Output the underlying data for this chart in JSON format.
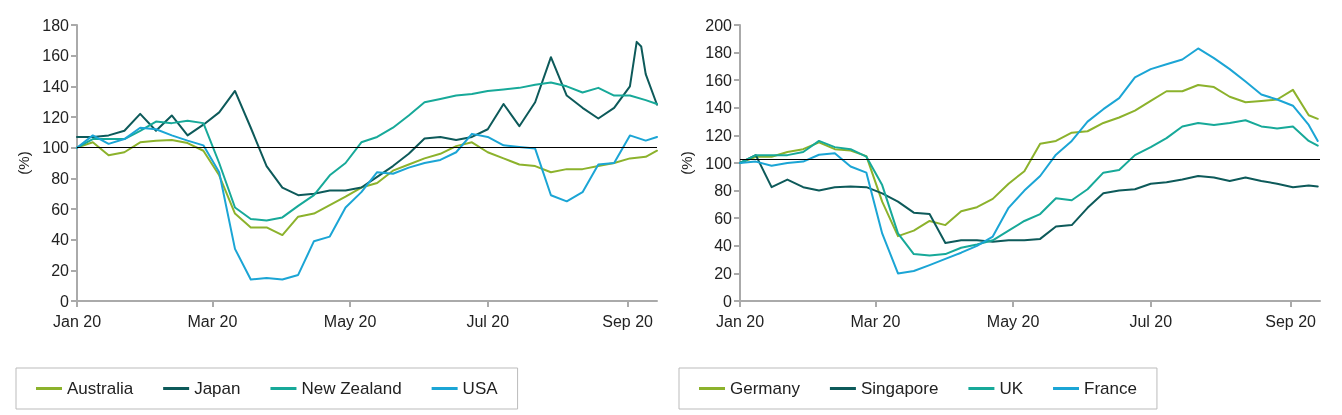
{
  "chart_data": [
    {
      "type": "line",
      "ylabel": "(%)",
      "xlim": [
        "2020-01-01",
        "2020-09-14"
      ],
      "ylim": [
        0,
        180
      ],
      "yticks": [
        0,
        20,
        40,
        60,
        80,
        100,
        120,
        140,
        160,
        180
      ],
      "xticks": [
        {
          "value": "2020-01-01",
          "label": "Jan 20"
        },
        {
          "value": "2020-03-01",
          "label": "Mar 20"
        },
        {
          "value": "2020-05-01",
          "label": "May 20"
        },
        {
          "value": "2020-07-01",
          "label": "Jul 20"
        },
        {
          "value": "2020-09-01",
          "label": "Sep 20"
        }
      ],
      "x": [
        "2020-01-01",
        "2020-01-08",
        "2020-01-15",
        "2020-01-22",
        "2020-01-29",
        "2020-02-05",
        "2020-02-12",
        "2020-02-19",
        "2020-02-26",
        "2020-03-04",
        "2020-03-11",
        "2020-03-18",
        "2020-03-25",
        "2020-04-01",
        "2020-04-08",
        "2020-04-15",
        "2020-04-22",
        "2020-04-29",
        "2020-05-06",
        "2020-05-13",
        "2020-05-20",
        "2020-05-27",
        "2020-06-03",
        "2020-06-10",
        "2020-06-17",
        "2020-06-24",
        "2020-07-01",
        "2020-07-08",
        "2020-07-15",
        "2020-07-22",
        "2020-07-29",
        "2020-08-05",
        "2020-08-12",
        "2020-08-19",
        "2020-08-26",
        "2020-09-02",
        "2020-09-09",
        "2020-09-14"
      ],
      "grid": false,
      "legend": "bottom",
      "marker": "none",
      "line_style": "solid",
      "ref_lines": [
        {
          "axis": "y",
          "value": 100,
          "color": "#000000"
        }
      ],
      "series": [
        {
          "name": "Australia",
          "color": "#8cb22c",
          "values": [
            100,
            103.5,
            95,
            97,
            103.5,
            104.5,
            105,
            103,
            98,
            82,
            57,
            48,
            48,
            43,
            55,
            57,
            62.5,
            68,
            74,
            77,
            85,
            89,
            93,
            96,
            101,
            103.5,
            97,
            93,
            89,
            88,
            84,
            86,
            86,
            88,
            90,
            93,
            94,
            98
          ]
        },
        {
          "name": "Japan",
          "color": "#0d5a5a",
          "x": [
            "2020-01-01",
            "2020-01-08",
            "2020-01-15",
            "2020-01-22",
            "2020-01-29",
            "2020-02-05",
            "2020-02-12",
            "2020-02-19",
            "2020-02-26",
            "2020-03-04",
            "2020-03-11",
            "2020-03-18",
            "2020-03-25",
            "2020-04-01",
            "2020-04-08",
            "2020-04-15",
            "2020-04-22",
            "2020-04-29",
            "2020-05-06",
            "2020-05-13",
            "2020-05-20",
            "2020-05-27",
            "2020-06-03",
            "2020-06-10",
            "2020-06-17",
            "2020-06-24",
            "2020-07-01",
            "2020-07-08",
            "2020-07-15",
            "2020-07-22",
            "2020-07-29",
            "2020-08-05",
            "2020-08-12",
            "2020-08-19",
            "2020-08-26",
            "2020-09-02",
            "2020-09-05",
            "2020-09-07",
            "2020-09-09",
            "2020-09-14"
          ],
          "values": [
            107,
            107,
            108,
            111,
            122,
            111,
            121,
            108,
            115,
            123,
            137,
            113,
            88,
            74,
            69,
            70,
            72,
            72,
            74,
            81,
            88,
            96,
            106,
            107,
            105,
            107,
            112,
            128.5,
            114,
            129.6,
            159,
            134,
            126,
            119,
            126,
            140,
            169,
            166,
            148,
            128
          ]
        },
        {
          "name": "New Zealand",
          "color": "#17a999",
          "values": [
            100,
            105.6,
            105.6,
            105.6,
            111,
            117,
            116,
            117.5,
            116,
            90,
            61,
            53.5,
            52.5,
            54.5,
            62,
            69,
            82,
            90,
            103.5,
            107,
            113,
            121,
            129.6,
            131.7,
            134,
            135,
            137,
            138,
            139,
            141,
            142.5,
            140,
            136,
            139,
            134,
            134,
            131,
            128.5
          ]
        },
        {
          "name": "USA",
          "color": "#1ba5d5",
          "values": [
            100,
            108,
            102.5,
            105.6,
            113,
            112,
            108,
            104.6,
            101.5,
            84,
            34,
            14,
            15,
            14,
            17,
            39,
            42,
            61,
            71,
            84,
            83,
            87,
            90,
            92,
            97,
            109,
            107,
            101.5,
            100.4,
            99.4,
            69,
            65,
            71,
            89,
            90,
            108,
            104.6,
            107
          ]
        }
      ]
    },
    {
      "type": "line",
      "ylabel": "(%)",
      "xlim": [
        "2020-01-01",
        "2020-09-14"
      ],
      "ylim": [
        0,
        200
      ],
      "yticks": [
        0,
        20,
        40,
        60,
        80,
        100,
        120,
        140,
        160,
        180,
        200
      ],
      "xticks": [
        {
          "value": "2020-01-01",
          "label": "Jan 20"
        },
        {
          "value": "2020-03-01",
          "label": "Mar 20"
        },
        {
          "value": "2020-05-01",
          "label": "May 20"
        },
        {
          "value": "2020-07-01",
          "label": "Jul 20"
        },
        {
          "value": "2020-09-01",
          "label": "Sep 20"
        }
      ],
      "x": [
        "2020-01-01",
        "2020-01-08",
        "2020-01-15",
        "2020-01-22",
        "2020-01-29",
        "2020-02-05",
        "2020-02-12",
        "2020-02-19",
        "2020-02-26",
        "2020-03-04",
        "2020-03-11",
        "2020-03-18",
        "2020-03-25",
        "2020-04-01",
        "2020-04-08",
        "2020-04-15",
        "2020-04-22",
        "2020-04-29",
        "2020-05-06",
        "2020-05-13",
        "2020-05-20",
        "2020-05-27",
        "2020-06-03",
        "2020-06-10",
        "2020-06-17",
        "2020-06-24",
        "2020-07-01",
        "2020-07-08",
        "2020-07-15",
        "2020-07-22",
        "2020-07-29",
        "2020-08-05",
        "2020-08-12",
        "2020-08-19",
        "2020-08-26",
        "2020-09-02",
        "2020-09-09",
        "2020-09-13"
      ],
      "grid": false,
      "legend": "bottom",
      "marker": "none",
      "line_style": "solid",
      "ref_lines": [
        {
          "axis": "y",
          "value": 103,
          "color": "#000000"
        }
      ],
      "series": [
        {
          "name": "Germany",
          "color": "#8cb22c",
          "values": [
            100,
            104.5,
            104.5,
            108,
            110,
            115,
            110,
            109,
            105,
            72,
            47,
            51,
            58,
            55,
            65,
            68,
            74,
            85,
            94,
            114,
            116,
            122,
            123,
            129,
            133,
            138,
            145,
            152,
            152,
            156.5,
            155,
            148,
            144,
            145,
            146,
            153,
            134.6,
            132
          ]
        },
        {
          "name": "Singapore",
          "color": "#0d5a5a",
          "values": [
            100,
            105.7,
            82.5,
            88,
            82.5,
            80,
            82.5,
            83,
            82.5,
            78,
            72,
            64,
            63,
            42,
            44,
            44,
            43,
            44,
            44,
            45,
            54,
            55,
            67.5,
            78,
            80,
            81,
            85,
            86,
            88,
            90.6,
            89.5,
            87,
            89.5,
            87,
            85,
            82.5,
            83.7,
            83
          ]
        },
        {
          "name": "UK",
          "color": "#17a999",
          "values": [
            100,
            105.7,
            105.7,
            105.7,
            108,
            116,
            111.5,
            110,
            104.6,
            84,
            49,
            34,
            33,
            34,
            38.6,
            41,
            44,
            51,
            58,
            63,
            74.5,
            73,
            81,
            93,
            95,
            105.7,
            111.5,
            118,
            126.5,
            129,
            127.6,
            129,
            131,
            126.5,
            125,
            126.5,
            116,
            112.6
          ]
        },
        {
          "name": "France",
          "color": "#1ba5d5",
          "values": [
            100,
            101,
            98,
            100,
            101,
            106,
            107,
            97.5,
            93,
            49,
            20,
            21.7,
            26,
            30.5,
            35,
            40,
            46.7,
            67.5,
            80,
            90.6,
            106,
            116,
            130,
            139,
            147,
            162,
            168,
            171.5,
            175,
            183,
            176,
            168,
            159,
            149.6,
            146,
            141.5,
            127.6,
            116
          ]
        }
      ]
    }
  ]
}
